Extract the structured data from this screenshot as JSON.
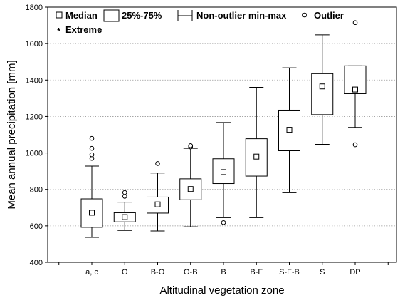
{
  "chart_data": {
    "type": "boxplot",
    "title": "",
    "xlabel": "Altitudinal vegetation zone",
    "ylabel": "Mean annual precipitation [mm]",
    "ylim": [
      400,
      1800
    ],
    "yticks": [
      "400",
      "600",
      "800",
      "1000",
      "1200",
      "1400",
      "1600",
      "1800"
    ],
    "grid": "horizontal dotted",
    "legend": {
      "placement": "top",
      "items": [
        {
          "marker": "small-square",
          "label": "Median"
        },
        {
          "marker": "box",
          "label": "25%-75%"
        },
        {
          "marker": "whisker",
          "label": "Non-outlier min-max"
        },
        {
          "marker": "circle",
          "label": "Outlier"
        },
        {
          "marker": "asterisk",
          "label": "Extreme"
        }
      ]
    },
    "categories": [
      "a, c",
      "O",
      "B-O",
      "O-B",
      "B",
      "B-F",
      "S-F-B",
      "S",
      "DP"
    ],
    "boxes": [
      {
        "category": "a, c",
        "whisker_min": 537,
        "q1": 592,
        "median": 672,
        "q3": 748,
        "whisker_max": 928,
        "outliers": [
          970,
          990,
          1025,
          1080
        ],
        "extremes": []
      },
      {
        "category": "O",
        "whisker_min": 575,
        "q1": 622,
        "median": 648,
        "q3": 672,
        "whisker_max": 730,
        "outliers": [
          762,
          783
        ],
        "extremes": []
      },
      {
        "category": "B-O",
        "whisker_min": 572,
        "q1": 670,
        "median": 718,
        "q3": 758,
        "whisker_max": 890,
        "outliers": [
          942
        ],
        "extremes": []
      },
      {
        "category": "O-B",
        "whisker_min": 595,
        "q1": 743,
        "median": 802,
        "q3": 858,
        "whisker_max": 1025,
        "outliers": [
          1033,
          1040
        ],
        "extremes": []
      },
      {
        "category": "B",
        "whisker_min": 645,
        "q1": 832,
        "median": 895,
        "q3": 968,
        "whisker_max": 1167,
        "outliers": [
          618
        ],
        "extremes": []
      },
      {
        "category": "B-F",
        "whisker_min": 645,
        "q1": 873,
        "median": 980,
        "q3": 1078,
        "whisker_max": 1360,
        "outliers": [],
        "extremes": []
      },
      {
        "category": "S-F-B",
        "whisker_min": 782,
        "q1": 1012,
        "median": 1127,
        "q3": 1235,
        "whisker_max": 1467,
        "outliers": [],
        "extremes": []
      },
      {
        "category": "S",
        "whisker_min": 1047,
        "q1": 1210,
        "median": 1365,
        "q3": 1435,
        "whisker_max": 1648,
        "outliers": [],
        "extremes": []
      },
      {
        "category": "DP",
        "whisker_min": 1140,
        "q1": 1325,
        "median": 1348,
        "q3": 1478,
        "whisker_max": 1478,
        "outliers": [
          1045,
          1715
        ],
        "extremes": []
      }
    ]
  }
}
